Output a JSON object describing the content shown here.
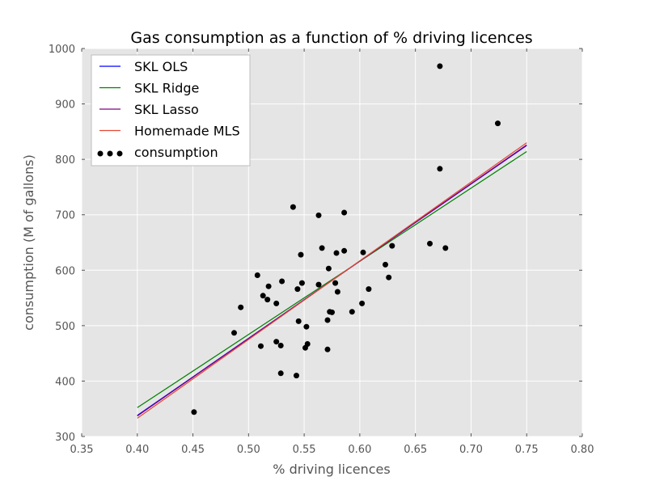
{
  "chart_data": {
    "type": "scatter",
    "title": "Gas consumption as a function of % driving licences",
    "xlabel": "% driving licences",
    "ylabel": "consumption (M of gallons)",
    "xlim": [
      0.35,
      0.8
    ],
    "ylim": [
      300,
      1000
    ],
    "xticks": [
      0.35,
      0.4,
      0.45,
      0.5,
      0.55,
      0.6,
      0.65,
      0.7,
      0.75,
      0.8
    ],
    "xtick_labels": [
      "0.35",
      "0.40",
      "0.45",
      "0.50",
      "0.55",
      "0.60",
      "0.65",
      "0.70",
      "0.75",
      "0.80"
    ],
    "yticks": [
      300,
      400,
      500,
      600,
      700,
      800,
      900,
      1000
    ],
    "ytick_labels": [
      "300",
      "400",
      "500",
      "600",
      "700",
      "800",
      "900",
      "1000"
    ],
    "grid": true,
    "legend_position": "top-left",
    "lines": [
      {
        "name": "SKL OLS",
        "color": "#0000ff",
        "x": [
          0.4,
          0.75
        ],
        "y": [
          338,
          825
        ]
      },
      {
        "name": "SKL Ridge",
        "color": "#008000",
        "x": [
          0.4,
          0.75
        ],
        "y": [
          352,
          814
        ]
      },
      {
        "name": "SKL Lasso",
        "color": "#800080",
        "x": [
          0.4,
          0.75
        ],
        "y": [
          337,
          826
        ]
      },
      {
        "name": "Homemade MLS",
        "color": "#e24a33",
        "x": [
          0.4,
          0.75
        ],
        "y": [
          333,
          830
        ]
      }
    ],
    "scatter": {
      "name": "consumption",
      "color": "#000000",
      "points": [
        [
          0.451,
          344
        ],
        [
          0.487,
          487
        ],
        [
          0.493,
          533
        ],
        [
          0.508,
          591
        ],
        [
          0.511,
          463
        ],
        [
          0.513,
          554
        ],
        [
          0.517,
          547
        ],
        [
          0.518,
          571
        ],
        [
          0.525,
          540
        ],
        [
          0.525,
          471
        ],
        [
          0.529,
          414
        ],
        [
          0.529,
          464
        ],
        [
          0.53,
          580
        ],
        [
          0.54,
          714
        ],
        [
          0.543,
          410
        ],
        [
          0.544,
          566
        ],
        [
          0.545,
          508
        ],
        [
          0.547,
          628
        ],
        [
          0.548,
          577
        ],
        [
          0.551,
          460
        ],
        [
          0.552,
          498
        ],
        [
          0.553,
          467
        ],
        [
          0.563,
          574
        ],
        [
          0.563,
          699
        ],
        [
          0.566,
          640
        ],
        [
          0.571,
          457
        ],
        [
          0.571,
          510
        ],
        [
          0.572,
          603
        ],
        [
          0.573,
          525
        ],
        [
          0.575,
          524
        ],
        [
          0.578,
          577
        ],
        [
          0.579,
          631
        ],
        [
          0.58,
          561
        ],
        [
          0.586,
          635
        ],
        [
          0.586,
          704
        ],
        [
          0.593,
          525
        ],
        [
          0.602,
          540
        ],
        [
          0.603,
          632
        ],
        [
          0.608,
          566
        ],
        [
          0.623,
          610
        ],
        [
          0.626,
          587
        ],
        [
          0.629,
          644
        ],
        [
          0.663,
          648
        ],
        [
          0.672,
          783
        ],
        [
          0.672,
          968
        ],
        [
          0.677,
          640
        ],
        [
          0.724,
          865
        ]
      ]
    }
  }
}
